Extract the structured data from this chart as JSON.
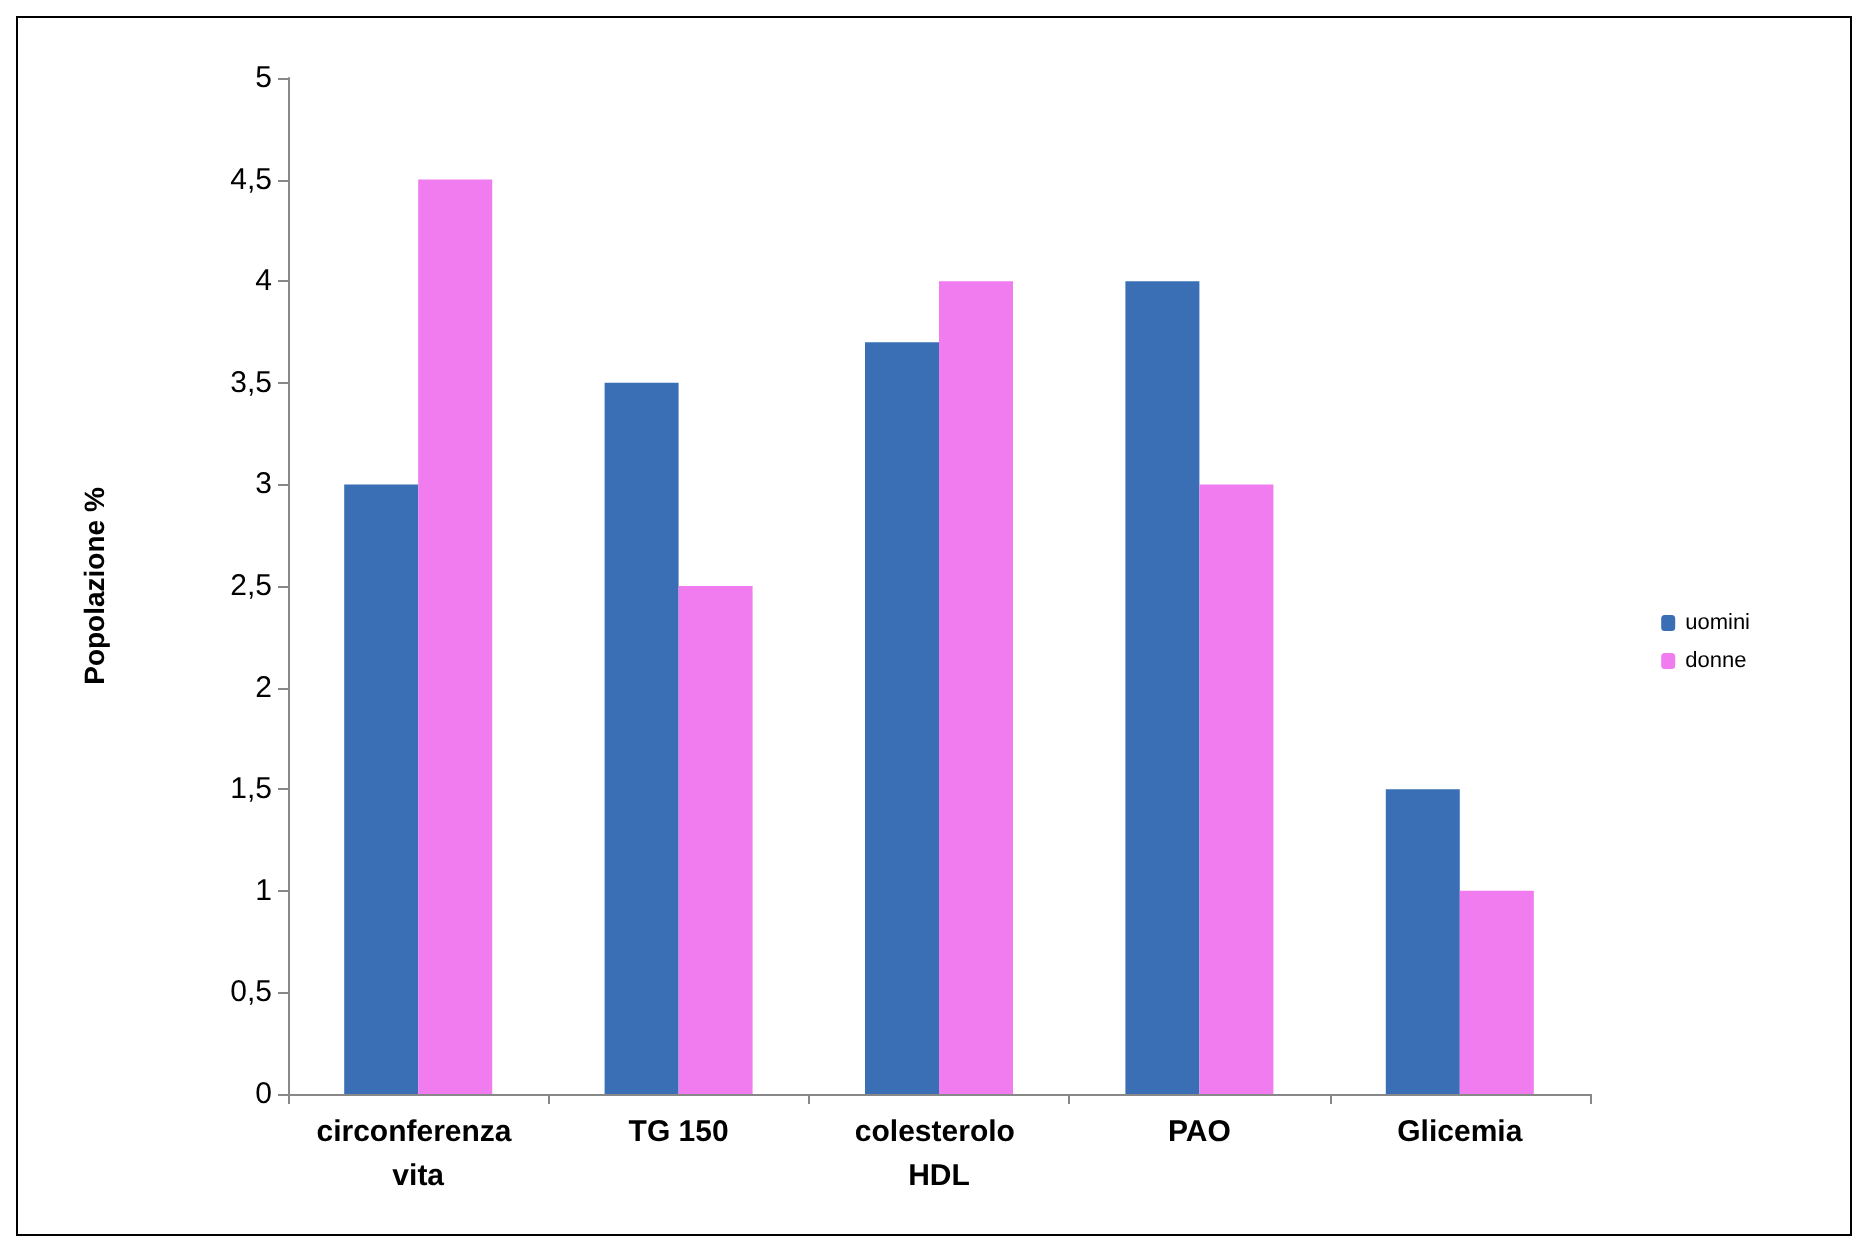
{
  "chart_data": {
    "type": "bar",
    "ylabel": "Popolazione %",
    "categories": [
      "circonferenza vita",
      "TG 150",
      "colesterolo HDL",
      "PAO",
      "Glicemia"
    ],
    "series": [
      {
        "name": "uomini",
        "color": "#3a6fb5",
        "values": [
          3,
          3.5,
          3.7,
          4,
          1.5
        ]
      },
      {
        "name": "donne",
        "color": "#f07cf0",
        "values": [
          4.5,
          2.5,
          4,
          3,
          1
        ]
      }
    ],
    "ylim": [
      0,
      5
    ],
    "yticks": [
      0,
      {
        "value": 0.5,
        "label": "0,5"
      },
      1,
      {
        "value": 1.5,
        "label": "1,5"
      },
      2,
      {
        "value": 2.5,
        "label": "2,5"
      },
      3,
      {
        "value": 3.5,
        "label": "3,5"
      },
      4,
      {
        "value": 4.5,
        "label": "4,5"
      },
      5
    ],
    "grid": false,
    "legend": "right"
  }
}
